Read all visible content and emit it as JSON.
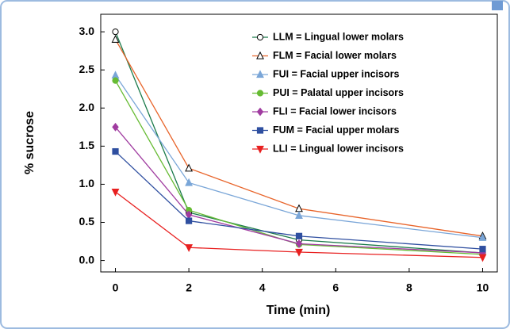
{
  "chart_data": {
    "type": "line",
    "xlabel": "Time (min)",
    "ylabel": "% sucrose",
    "x": [
      0,
      2,
      5,
      10
    ],
    "xlim": [
      -0.4,
      10.4
    ],
    "xticks": [
      0,
      2,
      4,
      6,
      8,
      10
    ],
    "ylim": [
      -0.15,
      3.23
    ],
    "yticks": [
      {
        "value": 0,
        "label": "0.0"
      },
      0.5,
      {
        "value": 1,
        "label": "1.0"
      },
      1.5,
      {
        "value": 2,
        "label": "2.0"
      },
      2.5,
      {
        "value": 3,
        "label": "3.0"
      }
    ],
    "series": [
      {
        "name": "LLM = Lingual lower molars",
        "color": "#1a7a4a",
        "marker": "open-circle",
        "values": [
          3.0,
          0.63,
          0.27,
          0.1
        ]
      },
      {
        "name": "FLM = Facial lower molars",
        "color": "#e8642a",
        "marker": "open-triangle",
        "values": [
          2.9,
          1.21,
          0.68,
          0.32
        ]
      },
      {
        "name": "FUI = Facial upper incisors",
        "color": "#7aa6d8",
        "marker": "triangle",
        "values": [
          2.43,
          1.02,
          0.59,
          0.3
        ]
      },
      {
        "name": "PUI = Palatal upper incisors",
        "color": "#66bb33",
        "marker": "circle",
        "values": [
          2.36,
          0.66,
          0.21,
          0.08
        ]
      },
      {
        "name": "FLI = Facial lower incisors",
        "color": "#a03ca0",
        "marker": "diamond",
        "values": [
          1.75,
          0.6,
          0.22,
          0.1
        ]
      },
      {
        "name": "FUM = Facial upper molars",
        "color": "#2f4fa0",
        "marker": "square",
        "values": [
          1.43,
          0.52,
          0.32,
          0.15
        ]
      },
      {
        "name": "LLI = Lingual lower incisors",
        "color": "#e82020",
        "marker": "down-triangle",
        "values": [
          0.9,
          0.17,
          0.11,
          0.04
        ]
      }
    ]
  }
}
